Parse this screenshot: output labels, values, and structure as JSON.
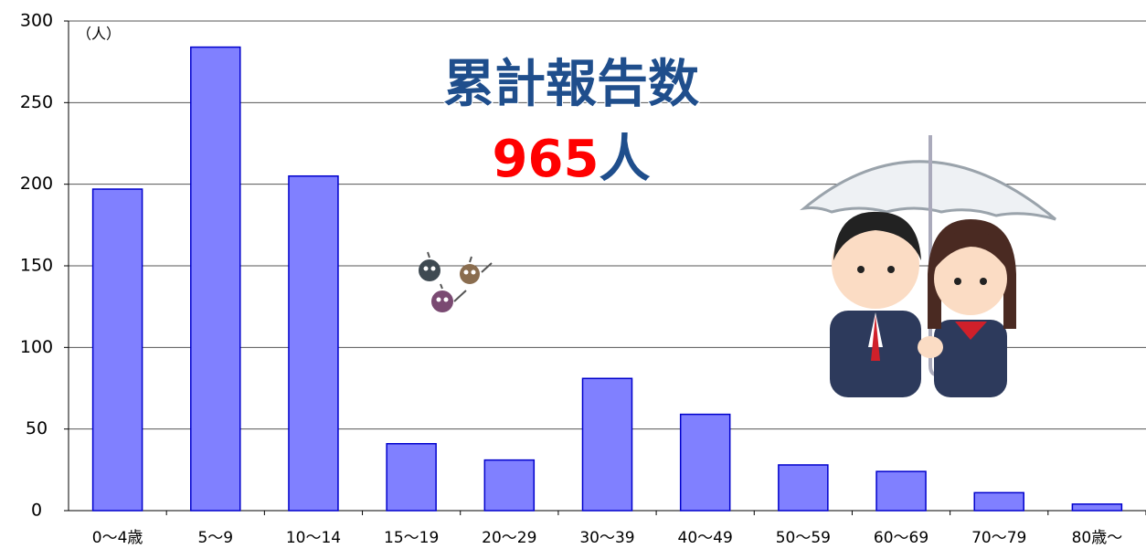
{
  "chart_data": {
    "type": "bar",
    "title": "累計報告数",
    "total": "965",
    "total_unit": "人",
    "y_unit": "（人）",
    "categories": [
      "0～4歳",
      "5～9",
      "10～14",
      "15～19",
      "20～29",
      "30～39",
      "40～49",
      "50～59",
      "60～69",
      "70～79",
      "80歳～"
    ],
    "values": [
      197,
      284,
      205,
      41,
      31,
      81,
      59,
      28,
      24,
      11,
      4
    ],
    "color": "#8080ff",
    "edge_color": "#0000cc",
    "ylim": [
      0,
      300
    ],
    "yticks": [
      0,
      50,
      100,
      150,
      200,
      250,
      300
    ],
    "grid": true
  }
}
